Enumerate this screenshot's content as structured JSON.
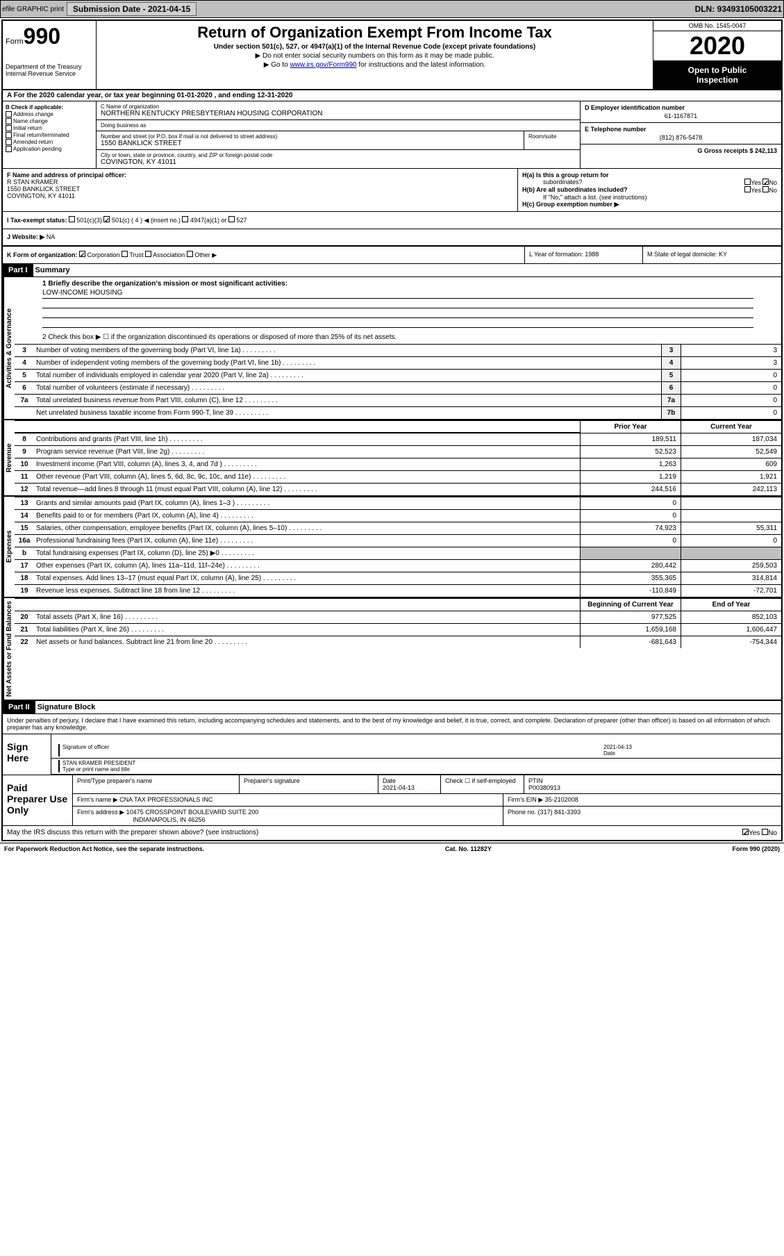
{
  "topbar": {
    "efile": "efile GRAPHIC print",
    "submission_label": "Submission Date - 2021-04-15",
    "dln": "DLN: 93493105003221"
  },
  "header": {
    "form_label": "Form",
    "form_num": "990",
    "dept": "Department of the Treasury",
    "irs": "Internal Revenue Service",
    "title": "Return of Organization Exempt From Income Tax",
    "subtitle": "Under section 501(c), 527, or 4947(a)(1) of the Internal Revenue Code (except private foundations)",
    "inst1": "▶ Do not enter social security numbers on this form as it may be made public.",
    "inst2_pre": "▶ Go to ",
    "inst2_link": "www.irs.gov/Form990",
    "inst2_post": " for instructions and the latest information.",
    "omb": "OMB No. 1545-0047",
    "year": "2020",
    "open1": "Open to Public",
    "open2": "Inspection"
  },
  "section_a": "A For the 2020 calendar year, or tax year beginning 01-01-2020    , and ending 12-31-2020",
  "section_b": {
    "label": "B Check if applicable:",
    "addr_change": "Address change",
    "name_change": "Name change",
    "initial": "Initial return",
    "final": "Final return/terminated",
    "amended": "Amended return",
    "app_pending": "Application pending"
  },
  "section_c": {
    "label": "C Name of organization",
    "name": "NORTHERN KENTUCKY PRESBYTERIAN HOUSING CORPORATION",
    "dba_label": "Doing business as",
    "addr_label": "Number and street (or P.O. box if mail is not delivered to street address)",
    "addr": "1550 BANKLICK STREET",
    "room_label": "Room/suite",
    "city_label": "City or town, state or province, country, and ZIP or foreign postal code",
    "city": "COVINGTON, KY  41011"
  },
  "section_d": {
    "label": "D Employer identification number",
    "value": "61-1167871"
  },
  "section_e": {
    "label": "E Telephone number",
    "value": "(812) 876-5478"
  },
  "section_g": {
    "label": "G Gross receipts $ 242,113"
  },
  "section_f": {
    "label": "F Name and address of principal officer:",
    "name": "R STAN KRAMER",
    "addr1": "1550 BANKLICK STREET",
    "addr2": "COVINGTON, KY  41011"
  },
  "section_h": {
    "ha_label": "H(a)  Is this a group return for",
    "ha_sub": "subordinates?",
    "hb_label": "H(b)  Are all subordinates included?",
    "hb_note": "If \"No,\" attach a list. (see instructions)",
    "hc_label": "H(c)  Group exemption number ▶",
    "yes": "Yes",
    "no": "No"
  },
  "section_i": {
    "label": "I  Tax-exempt status:",
    "opt1": "501(c)(3)",
    "opt2": "501(c) ( 4 ) ◀ (insert no.)",
    "opt3": "4947(a)(1) or",
    "opt4": "527"
  },
  "section_j": {
    "label": "J  Website: ▶",
    "value": "NA"
  },
  "section_k": {
    "label": "K Form of organization:",
    "corp": "Corporation",
    "trust": "Trust",
    "assoc": "Association",
    "other": "Other ▶"
  },
  "section_l": {
    "label": "L Year of formation: 1988"
  },
  "section_m": {
    "label": "M State of legal domicile: KY"
  },
  "part1": {
    "header": "Part I",
    "title": "Summary",
    "q1_label": "1  Briefly describe the organization's mission or most significant activities:",
    "q1_value": "LOW-INCOME HOUSING",
    "q2": "2    Check this box ▶ ☐  if the organization discontinued its operations or disposed of more than 25% of its net assets.",
    "rows": [
      {
        "n": "3",
        "label": "Number of voting members of the governing body (Part VI, line 1a)",
        "box": "3",
        "val": "3"
      },
      {
        "n": "4",
        "label": "Number of independent voting members of the governing body (Part VI, line 1b)",
        "box": "4",
        "val": "3"
      },
      {
        "n": "5",
        "label": "Total number of individuals employed in calendar year 2020 (Part V, line 2a)",
        "box": "5",
        "val": "0"
      },
      {
        "n": "6",
        "label": "Total number of volunteers (estimate if necessary)",
        "box": "6",
        "val": "0"
      },
      {
        "n": "7a",
        "label": "Total unrelated business revenue from Part VIII, column (C), line 12",
        "box": "7a",
        "val": "0"
      },
      {
        "n": "",
        "label": "Net unrelated business taxable income from Form 990-T, line 39",
        "box": "7b",
        "val": "0"
      }
    ],
    "col_headers": {
      "c1": "Prior Year",
      "c2": "Current Year",
      "c3": "Beginning of Current Year",
      "c4": "End of Year"
    },
    "vert_labels": {
      "act": "Activities & Governance",
      "rev": "Revenue",
      "exp": "Expenses",
      "net": "Net Assets or Fund Balances"
    },
    "revenue_rows": [
      {
        "n": "8",
        "label": "Contributions and grants (Part VIII, line 1h)",
        "v1": "189,511",
        "v2": "187,034"
      },
      {
        "n": "9",
        "label": "Program service revenue (Part VIII, line 2g)",
        "v1": "52,523",
        "v2": "52,549"
      },
      {
        "n": "10",
        "label": "Investment income (Part VIII, column (A), lines 3, 4, and 7d )",
        "v1": "1,263",
        "v2": "609"
      },
      {
        "n": "11",
        "label": "Other revenue (Part VIII, column (A), lines 5, 6d, 8c, 9c, 10c, and 11e)",
        "v1": "1,219",
        "v2": "1,921"
      },
      {
        "n": "12",
        "label": "Total revenue—add lines 8 through 11 (must equal Part VIII, column (A), line 12)",
        "v1": "244,516",
        "v2": "242,113"
      }
    ],
    "expense_rows": [
      {
        "n": "13",
        "label": "Grants and similar amounts paid (Part IX, column (A), lines 1–3 )",
        "v1": "0",
        "v2": ""
      },
      {
        "n": "14",
        "label": "Benefits paid to or for members (Part IX, column (A), line 4)",
        "v1": "0",
        "v2": ""
      },
      {
        "n": "15",
        "label": "Salaries, other compensation, employee benefits (Part IX, column (A), lines 5–10)",
        "v1": "74,923",
        "v2": "55,311"
      },
      {
        "n": "16a",
        "label": "Professional fundraising fees (Part IX, column (A), line 11e)",
        "v1": "0",
        "v2": "0"
      },
      {
        "n": "b",
        "label": "Total fundraising expenses (Part IX, column (D), line 25) ▶0",
        "v1": "",
        "v2": "",
        "shaded": true
      },
      {
        "n": "17",
        "label": "Other expenses (Part IX, column (A), lines 11a–11d, 11f–24e)",
        "v1": "280,442",
        "v2": "259,503"
      },
      {
        "n": "18",
        "label": "Total expenses. Add lines 13–17 (must equal Part IX, column (A), line 25)",
        "v1": "355,365",
        "v2": "314,814"
      },
      {
        "n": "19",
        "label": "Revenue less expenses. Subtract line 18 from line 12",
        "v1": "-110,849",
        "v2": "-72,701"
      }
    ],
    "net_rows": [
      {
        "n": "20",
        "label": "Total assets (Part X, line 16)",
        "v1": "977,525",
        "v2": "852,103"
      },
      {
        "n": "21",
        "label": "Total liabilities (Part X, line 26)",
        "v1": "1,659,168",
        "v2": "1,606,447"
      },
      {
        "n": "22",
        "label": "Net assets or fund balances. Subtract line 21 from line 20",
        "v1": "-681,643",
        "v2": "-754,344"
      }
    ]
  },
  "part2": {
    "header": "Part II",
    "title": "Signature Block",
    "declaration": "Under penalties of perjury, I declare that I have examined this return, including accompanying schedules and statements, and to the best of my knowledge and belief, it is true, correct, and complete. Declaration of preparer (other than officer) is based on all information of which preparer has any knowledge.",
    "sign_here": "Sign Here",
    "sig_officer": "Signature of officer",
    "sig_date": "2021-04-13",
    "date_label": "Date",
    "officer_name": "STAN KRAMER  PRESIDENT",
    "type_label": "Type or print name and title",
    "paid_prep": "Paid Preparer Use Only",
    "prep_name_label": "Print/Type preparer's name",
    "prep_sig_label": "Preparer's signature",
    "prep_date_label": "Date",
    "prep_date": "2021-04-13",
    "check_self": "Check ☐ if self-employed",
    "ptin_label": "PTIN",
    "ptin": "P00380913",
    "firm_name_label": "Firm's name      ▶",
    "firm_name": "CNA TAX PROFESSIONALS INC",
    "firm_ein_label": "Firm's EIN ▶",
    "firm_ein": "35-2102008",
    "firm_addr_label": "Firm's address ▶",
    "firm_addr": "10475 CROSSPOINT BOULEVARD SUITE 200",
    "firm_city": "INDIANAPOLIS, IN  46256",
    "phone_label": "Phone no.",
    "phone": "(317) 841-3393",
    "discuss": "May the IRS discuss this return with the preparer shown above? (see instructions)",
    "discuss_yes": "Yes",
    "discuss_no": "No"
  },
  "footer": {
    "left": "For Paperwork Reduction Act Notice, see the separate instructions.",
    "center": "Cat. No. 11282Y",
    "right": "Form 990 (2020)"
  }
}
